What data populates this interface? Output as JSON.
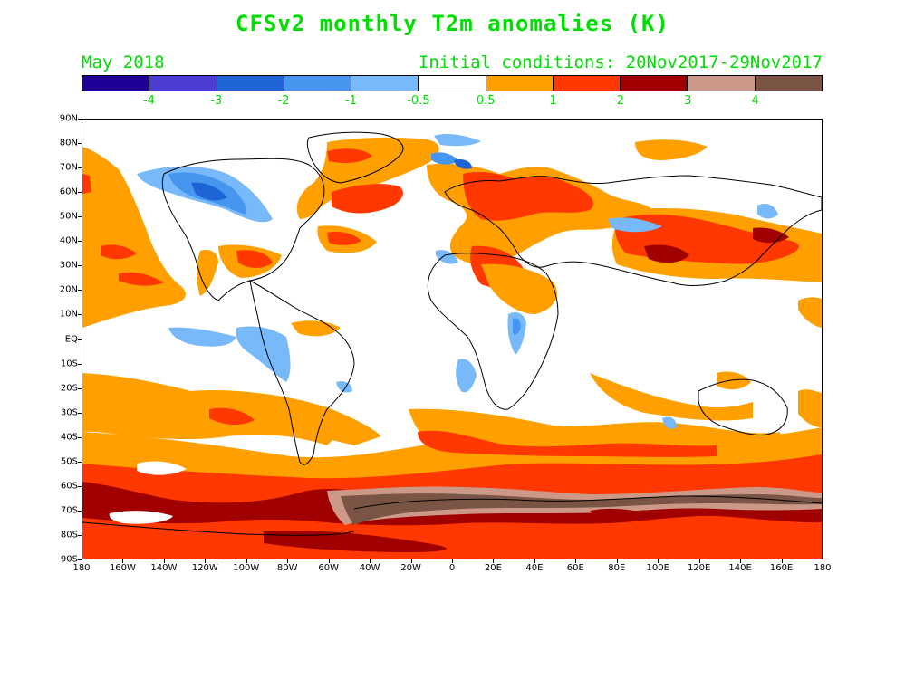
{
  "title": "CFSv2 monthly T2m anomalies (K)",
  "subtitle_left": "May 2018",
  "subtitle_right": "Initial conditions: 20Nov2017-29Nov2017",
  "colorbar": {
    "colors": [
      "#1e0096",
      "#4b3cd2",
      "#1f64d7",
      "#4696f0",
      "#78b9fa",
      "#ffffff",
      "#ffa000",
      "#ff3700",
      "#a00000",
      "#cc9988",
      "#7a5545"
    ],
    "labels": [
      "-4",
      "-3",
      "-2",
      "-1",
      "-0.5",
      "0.5",
      "1",
      "2",
      "3",
      "4"
    ]
  },
  "axes": {
    "lat_labels": [
      "90N",
      "80N",
      "70N",
      "60N",
      "50N",
      "40N",
      "30N",
      "20N",
      "10N",
      "EQ",
      "10S",
      "20S",
      "30S",
      "40S",
      "50S",
      "60S",
      "70S",
      "80S",
      "90S"
    ],
    "lon_labels": [
      "180",
      "160W",
      "140W",
      "120W",
      "100W",
      "80W",
      "60W",
      "40W",
      "20W",
      "0",
      "20E",
      "40E",
      "60E",
      "80E",
      "100E",
      "120E",
      "140E",
      "160E",
      "180"
    ]
  }
}
